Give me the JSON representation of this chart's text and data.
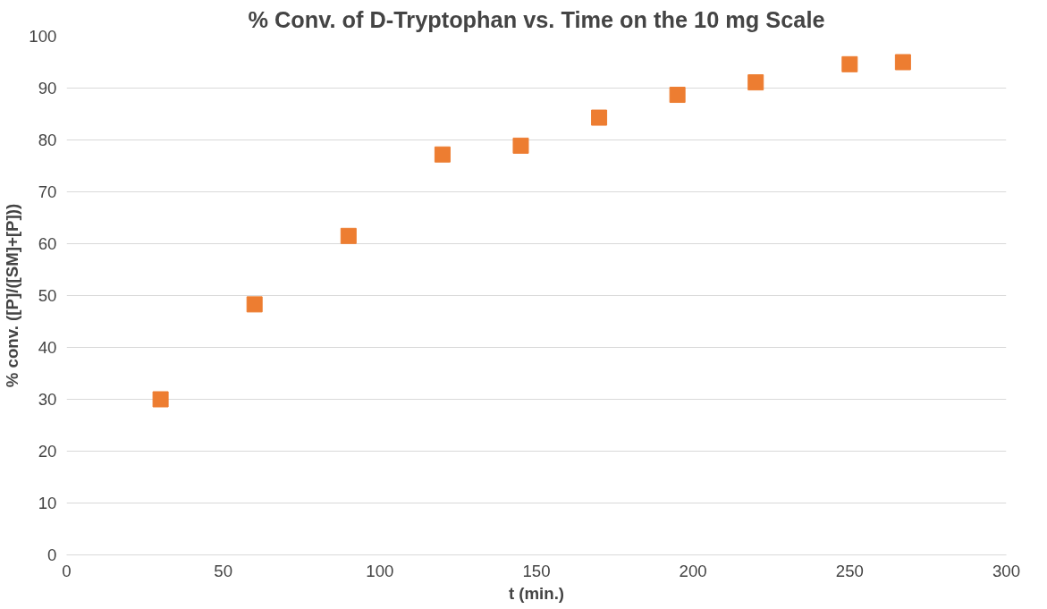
{
  "chart_data": {
    "type": "scatter",
    "title": "% Conv. of D-Tryptophan vs. Time on the 10 mg Scale",
    "xlabel": "t (min.)",
    "ylabel": "% conv. ([P]/([SM]+[P]))",
    "x": [
      30,
      60,
      90,
      120,
      145,
      170,
      195,
      220,
      250,
      267
    ],
    "series": [
      {
        "color": "#ed7d31",
        "values": [
          30.0,
          48.3,
          61.5,
          77.2,
          78.9,
          84.3,
          88.7,
          91.1,
          94.6,
          95.0
        ]
      }
    ],
    "xlim": [
      0,
      300
    ],
    "xticks": [
      0,
      50,
      100,
      150,
      200,
      250,
      300
    ],
    "ylim": [
      0,
      100
    ],
    "yticks": [
      0,
      10,
      20,
      30,
      40,
      50,
      60,
      70,
      80,
      90,
      100
    ],
    "grid": "y",
    "marker": "square"
  }
}
